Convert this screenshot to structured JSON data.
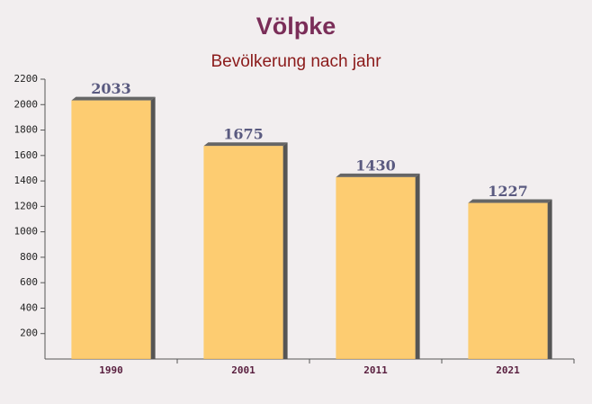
{
  "chart_data": {
    "type": "bar",
    "title": "Völpke",
    "subtitle": "Bevölkerung nach jahr",
    "categories": [
      "1990",
      "2001",
      "2011",
      "2021"
    ],
    "values": [
      2033,
      1675,
      1430,
      1227
    ],
    "color": "#ffc55a",
    "ylim": [
      0,
      2200
    ],
    "yticks": [
      200,
      400,
      600,
      800,
      1000,
      1200,
      1400,
      1600,
      1800,
      2000,
      2200
    ],
    "grid": false
  }
}
